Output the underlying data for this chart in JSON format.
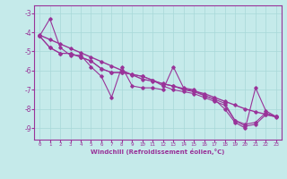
{
  "xlabel": "Windchill (Refroidissement éolien,°C)",
  "background_color": "#c5eaea",
  "grid_color": "#a8d8d8",
  "line_color": "#993399",
  "xlim": [
    -0.5,
    23.5
  ],
  "ylim": [
    -9.6,
    -2.6
  ],
  "yticks": [
    -9,
    -8,
    -7,
    -6,
    -5,
    -4,
    -3
  ],
  "xticks": [
    0,
    1,
    2,
    3,
    4,
    5,
    6,
    7,
    8,
    9,
    10,
    11,
    12,
    13,
    14,
    15,
    16,
    17,
    18,
    19,
    20,
    21,
    22,
    23
  ],
  "line1": [
    -4.2,
    -3.3,
    -4.8,
    -5.2,
    -5.2,
    -5.8,
    -6.3,
    -7.4,
    -5.8,
    -6.8,
    -6.9,
    -6.9,
    -7.0,
    -5.8,
    -6.9,
    -7.0,
    -7.3,
    -7.5,
    -8.0,
    -8.7,
    -9.0,
    -6.9,
    -8.1,
    -8.4
  ],
  "line2": [
    -4.2,
    -4.8,
    -5.1,
    -5.1,
    -5.3,
    -5.5,
    -5.9,
    -6.1,
    -6.1,
    -6.2,
    -6.3,
    -6.5,
    -6.7,
    -6.8,
    -7.0,
    -7.1,
    -7.3,
    -7.5,
    -7.7,
    -8.6,
    -8.8,
    -8.7,
    -8.2,
    -8.4
  ],
  "line3": [
    -4.2,
    -4.8,
    -5.1,
    -5.1,
    -5.3,
    -5.5,
    -5.9,
    -6.1,
    -6.1,
    -6.2,
    -6.3,
    -6.5,
    -6.8,
    -7.0,
    -7.1,
    -7.2,
    -7.4,
    -7.6,
    -7.8,
    -8.6,
    -8.9,
    -8.8,
    -8.3,
    -8.4
  ],
  "line_regression": [
    -4.15,
    -4.38,
    -4.61,
    -4.84,
    -5.07,
    -5.3,
    -5.53,
    -5.76,
    -5.99,
    -6.22,
    -6.45,
    -6.55,
    -6.68,
    -6.81,
    -6.94,
    -7.07,
    -7.2,
    -7.4,
    -7.6,
    -7.8,
    -8.0,
    -8.15,
    -8.28,
    -8.42
  ]
}
